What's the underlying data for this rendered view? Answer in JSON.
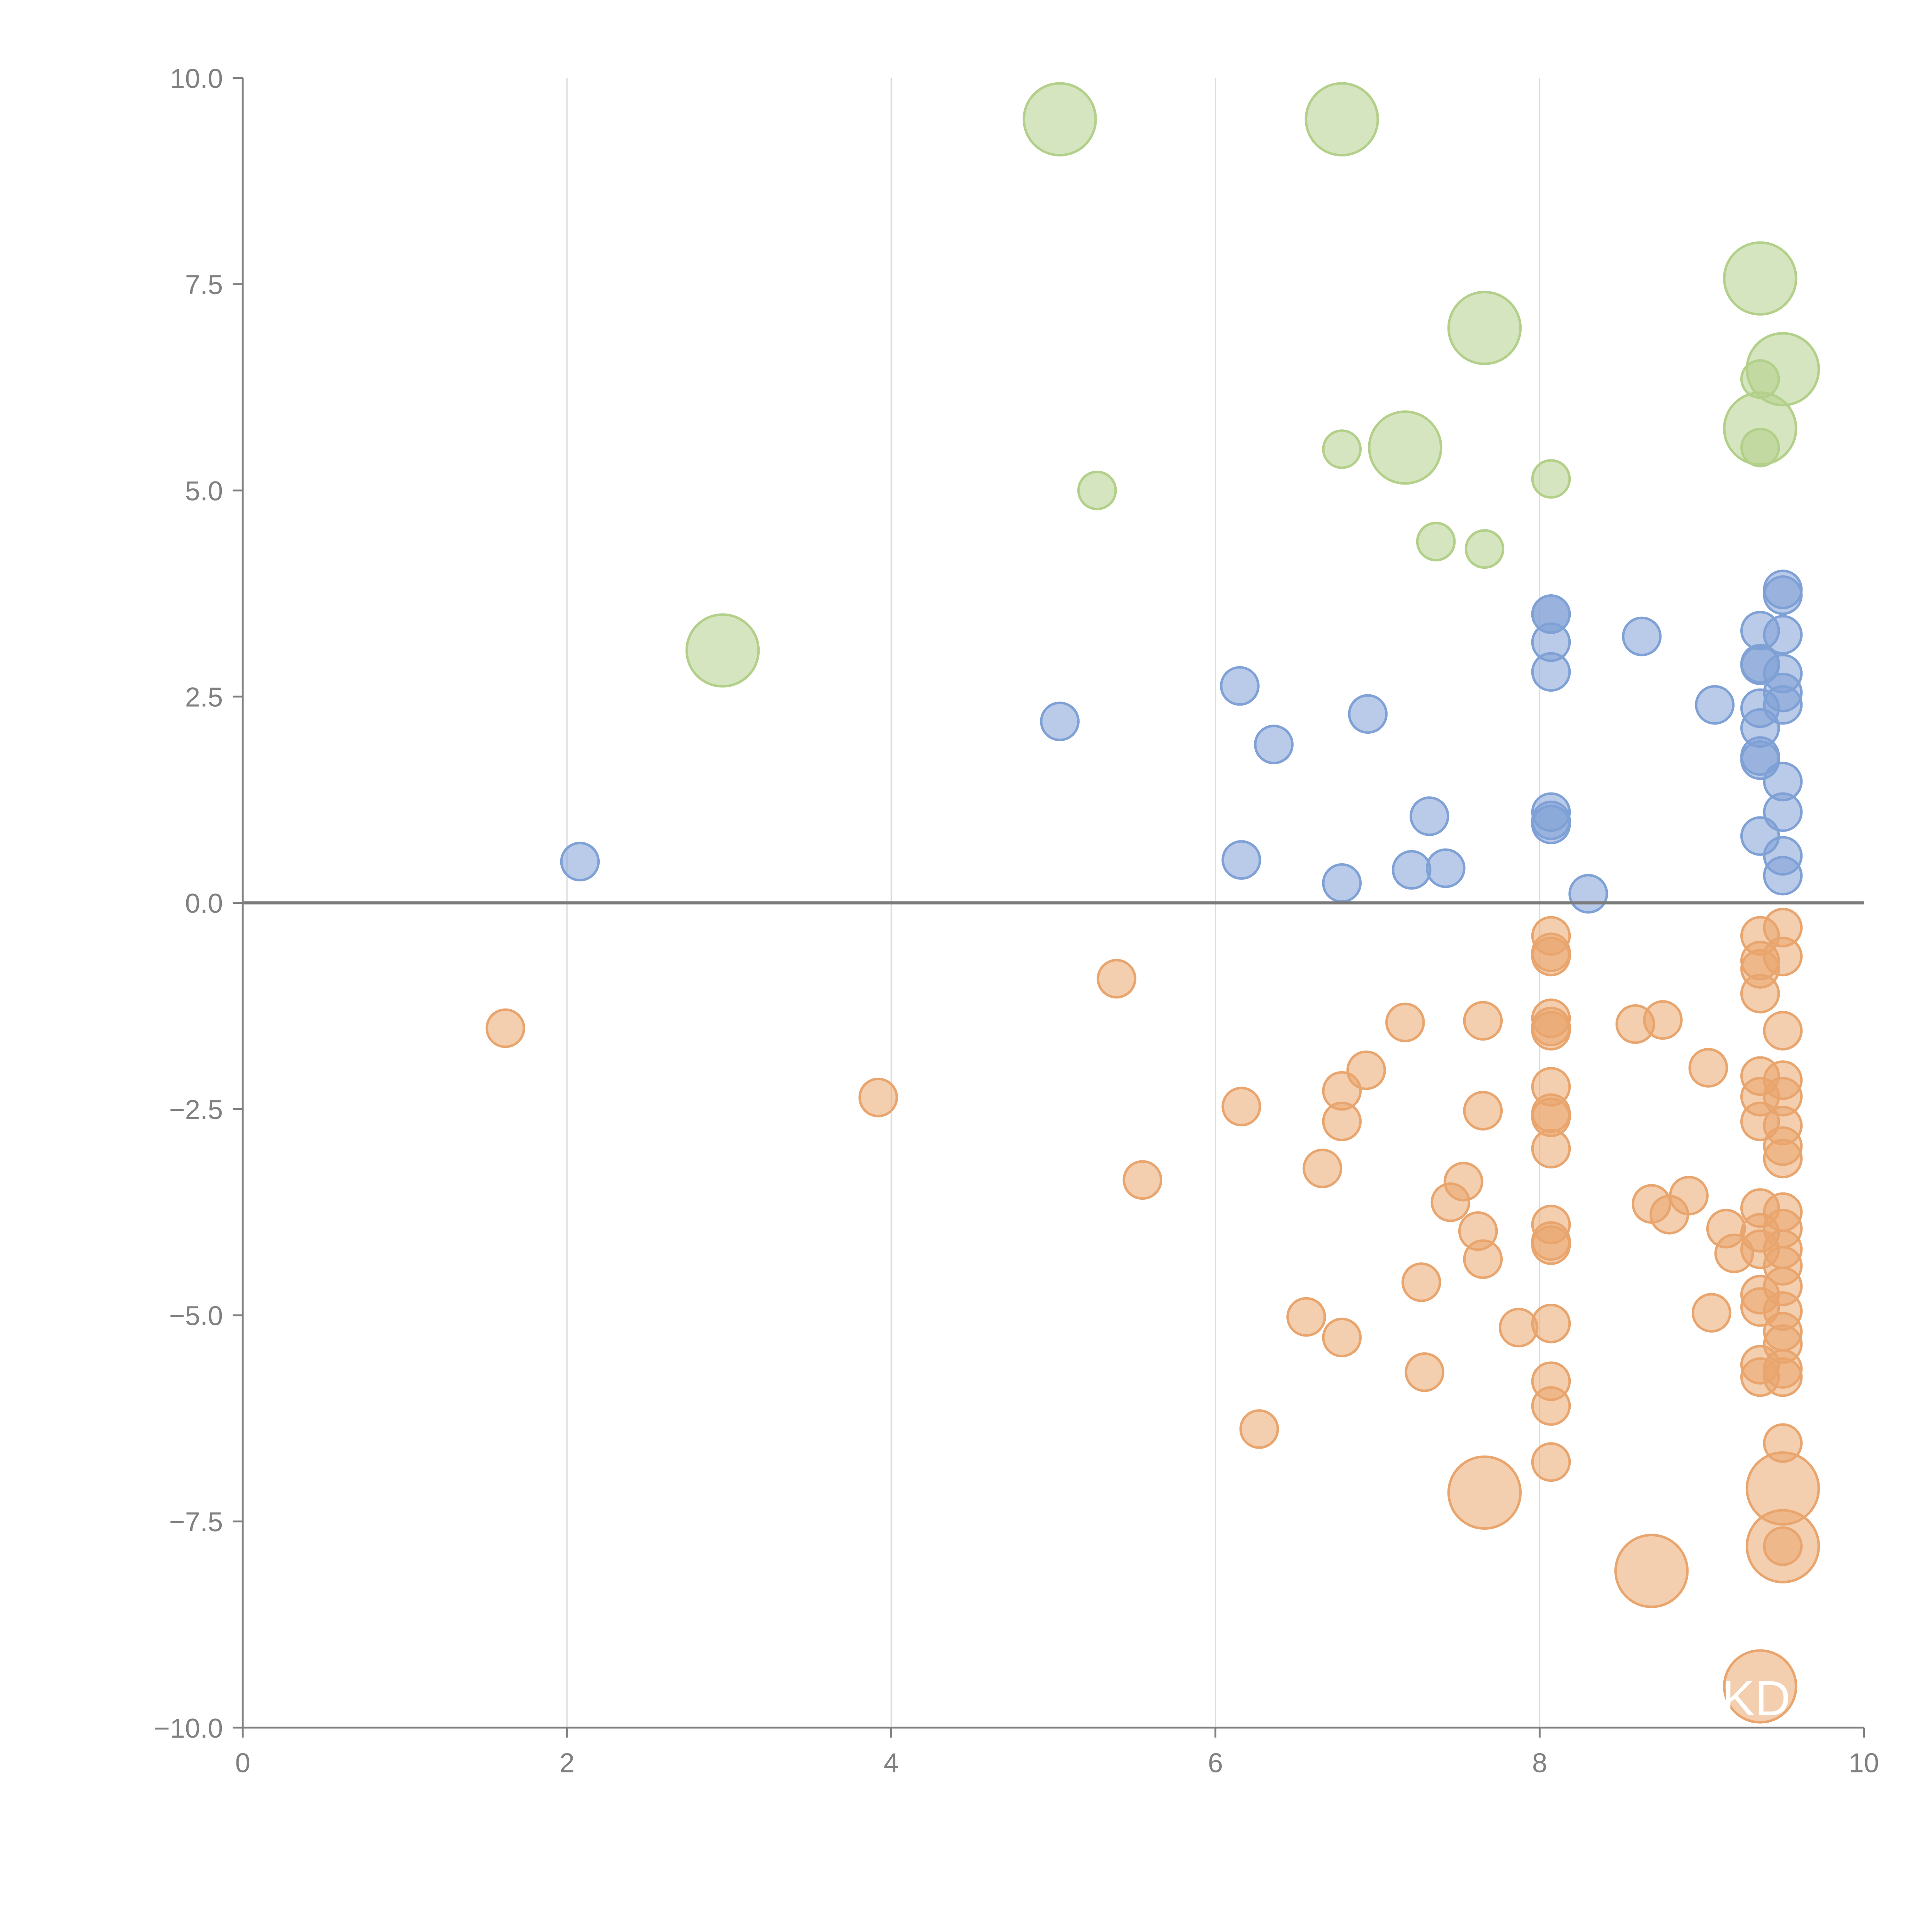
{
  "chart_data": {
    "type": "scatter",
    "title": "",
    "xlabel": "",
    "ylabel": "",
    "xlim": [
      0,
      10
    ],
    "ylim": [
      -10,
      10
    ],
    "xticks": [
      "0",
      "2",
      "4",
      "6",
      "8",
      "10"
    ],
    "yticks": [
      "10.0",
      "7.5",
      "5.0",
      "2.5",
      "0.0",
      "−2.5",
      "−5.0",
      "−7.5",
      "−10.0"
    ],
    "grid": "vertical",
    "watermark": "KD",
    "colors": {
      "green": "#b3d08a",
      "blue": "#7fa1d6",
      "orange": "#e9a56e"
    },
    "series": [
      {
        "name": "green",
        "color": "#b3d08a",
        "points": [
          [
            5.04,
            9.5,
            2
          ],
          [
            6.78,
            9.5,
            2
          ],
          [
            9.36,
            7.57,
            2
          ],
          [
            7.66,
            6.97,
            2
          ],
          [
            9.5,
            6.47,
            2
          ],
          [
            9.36,
            5.75,
            2
          ],
          [
            9.36,
            6.35,
            1
          ],
          [
            9.36,
            5.52,
            1
          ],
          [
            7.17,
            5.52,
            2
          ],
          [
            6.78,
            5.5,
            1
          ],
          [
            5.27,
            5.0,
            1
          ],
          [
            8.07,
            5.14,
            1
          ],
          [
            7.36,
            4.38,
            1
          ],
          [
            7.66,
            4.29,
            1
          ],
          [
            2.96,
            3.06,
            2
          ]
        ]
      },
      {
        "name": "blue",
        "color": "#7fa1d6",
        "points": [
          [
            2.08,
            0.5,
            1
          ],
          [
            5.04,
            2.2,
            1
          ],
          [
            6.15,
            2.63,
            1
          ],
          [
            6.36,
            1.92,
            1
          ],
          [
            6.94,
            2.29,
            1
          ],
          [
            6.16,
            0.52,
            1
          ],
          [
            6.78,
            0.24,
            1
          ],
          [
            7.21,
            0.4,
            1
          ],
          [
            7.32,
            1.05,
            1
          ],
          [
            7.42,
            0.42,
            1
          ],
          [
            8.07,
            3.5,
            1
          ],
          [
            8.07,
            3.5,
            1
          ],
          [
            8.07,
            3.16,
            1
          ],
          [
            8.07,
            2.8,
            1
          ],
          [
            8.07,
            1.1,
            1
          ],
          [
            8.07,
            0.95,
            1
          ],
          [
            8.07,
            1.0,
            1
          ],
          [
            8.3,
            0.11,
            1
          ],
          [
            8.63,
            3.23,
            1
          ],
          [
            9.08,
            2.4,
            1
          ],
          [
            9.36,
            3.3,
            1
          ],
          [
            9.36,
            2.88,
            1
          ],
          [
            9.36,
            2.9,
            1
          ],
          [
            9.36,
            2.36,
            1
          ],
          [
            9.36,
            2.12,
            1
          ],
          [
            9.36,
            1.78,
            1
          ],
          [
            9.36,
            1.73,
            1
          ],
          [
            9.36,
            0.81,
            1
          ],
          [
            9.5,
            3.8,
            1
          ],
          [
            9.5,
            3.73,
            1
          ],
          [
            9.5,
            3.25,
            1
          ],
          [
            9.5,
            2.78,
            1
          ],
          [
            9.5,
            2.55,
            1
          ],
          [
            9.5,
            2.4,
            1
          ],
          [
            9.5,
            1.47,
            1
          ],
          [
            9.5,
            1.1,
            1
          ],
          [
            9.5,
            0.57,
            1
          ],
          [
            9.5,
            0.33,
            1
          ]
        ]
      },
      {
        "name": "orange",
        "color": "#e9a56e",
        "points": [
          [
            1.62,
            -1.52,
            1
          ],
          [
            3.92,
            -2.36,
            1
          ],
          [
            5.39,
            -0.92,
            1
          ],
          [
            5.55,
            -3.36,
            1
          ],
          [
            6.16,
            -2.47,
            1
          ],
          [
            6.27,
            -6.38,
            1
          ],
          [
            6.56,
            -5.02,
            1
          ],
          [
            6.66,
            -3.22,
            1
          ],
          [
            6.78,
            -2.28,
            1
          ],
          [
            6.78,
            -2.65,
            1
          ],
          [
            6.78,
            -5.27,
            1
          ],
          [
            6.93,
            -2.03,
            1
          ],
          [
            7.17,
            -1.45,
            1
          ],
          [
            7.27,
            -4.6,
            1
          ],
          [
            7.29,
            -5.69,
            1
          ],
          [
            7.45,
            -3.63,
            1
          ],
          [
            7.53,
            -3.38,
            1
          ],
          [
            7.62,
            -3.98,
            1
          ],
          [
            7.65,
            -1.43,
            1
          ],
          [
            7.65,
            -2.52,
            1
          ],
          [
            7.65,
            -4.32,
            1
          ],
          [
            7.66,
            -7.15,
            2
          ],
          [
            7.87,
            -5.15,
            1
          ],
          [
            8.07,
            -0.4,
            1
          ],
          [
            8.07,
            -0.6,
            1
          ],
          [
            8.07,
            -0.65,
            1
          ],
          [
            8.07,
            -1.4,
            1
          ],
          [
            8.07,
            -1.5,
            1
          ],
          [
            8.07,
            -1.55,
            1
          ],
          [
            8.07,
            -2.23,
            1
          ],
          [
            8.07,
            -2.55,
            1
          ],
          [
            8.07,
            -2.6,
            1
          ],
          [
            8.07,
            -2.98,
            1
          ],
          [
            8.07,
            -3.9,
            1
          ],
          [
            8.07,
            -4.1,
            1
          ],
          [
            8.07,
            -4.15,
            1
          ],
          [
            8.07,
            -5.1,
            1
          ],
          [
            8.07,
            -5.8,
            1
          ],
          [
            8.07,
            -6.1,
            1
          ],
          [
            8.07,
            -6.78,
            1
          ],
          [
            8.59,
            -1.47,
            1
          ],
          [
            8.69,
            -3.65,
            1
          ],
          [
            8.76,
            -1.42,
            1
          ],
          [
            8.8,
            -3.78,
            1
          ],
          [
            8.92,
            -3.55,
            1
          ],
          [
            9.04,
            -2.0,
            1
          ],
          [
            9.06,
            -4.97,
            1
          ],
          [
            9.15,
            -3.95,
            1
          ],
          [
            9.2,
            -4.25,
            1
          ],
          [
            9.36,
            -0.4,
            1
          ],
          [
            9.36,
            -0.7,
            1
          ],
          [
            9.36,
            -0.8,
            1
          ],
          [
            9.36,
            -1.1,
            1
          ],
          [
            9.36,
            -2.1,
            1
          ],
          [
            9.36,
            -2.35,
            1
          ],
          [
            9.36,
            -2.65,
            1
          ],
          [
            9.36,
            -3.7,
            1
          ],
          [
            9.36,
            -4.0,
            1
          ],
          [
            9.36,
            -4.2,
            1
          ],
          [
            9.36,
            -4.75,
            1
          ],
          [
            9.36,
            -4.9,
            1
          ],
          [
            9.36,
            -5.6,
            1
          ],
          [
            9.36,
            -5.75,
            1
          ],
          [
            9.5,
            -0.3,
            1
          ],
          [
            9.5,
            -0.65,
            1
          ],
          [
            9.5,
            -1.55,
            1
          ],
          [
            9.5,
            -2.15,
            1
          ],
          [
            9.5,
            -2.35,
            1
          ],
          [
            9.5,
            -2.7,
            1
          ],
          [
            9.5,
            -2.95,
            1
          ],
          [
            9.5,
            -3.1,
            1
          ],
          [
            9.5,
            -3.75,
            1
          ],
          [
            9.5,
            -3.95,
            1
          ],
          [
            9.5,
            -4.2,
            1
          ],
          [
            9.5,
            -4.4,
            1
          ],
          [
            9.5,
            -4.65,
            1
          ],
          [
            9.5,
            -4.95,
            1
          ],
          [
            9.5,
            -5.2,
            1
          ],
          [
            9.5,
            -5.35,
            1
          ],
          [
            9.5,
            -5.65,
            1
          ],
          [
            9.5,
            -5.75,
            1
          ],
          [
            9.5,
            -6.55,
            1
          ],
          [
            9.5,
            -7.1,
            2
          ],
          [
            9.5,
            -7.8,
            2
          ],
          [
            9.5,
            -7.8,
            1
          ],
          [
            8.69,
            -8.1,
            2
          ],
          [
            9.36,
            -9.5,
            2
          ]
        ]
      }
    ]
  }
}
